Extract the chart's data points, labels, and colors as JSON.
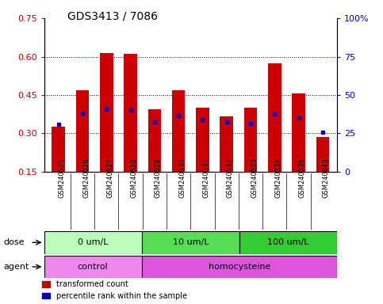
{
  "title": "GDS3413 / 7086",
  "samples": [
    "GSM240525",
    "GSM240526",
    "GSM240527",
    "GSM240528",
    "GSM240529",
    "GSM240530",
    "GSM240531",
    "GSM240532",
    "GSM240533",
    "GSM240534",
    "GSM240535",
    "GSM240848"
  ],
  "red_values": [
    0.325,
    0.47,
    0.615,
    0.61,
    0.395,
    0.47,
    0.4,
    0.365,
    0.4,
    0.575,
    0.455,
    0.285
  ],
  "blue_values": [
    0.335,
    0.38,
    0.395,
    0.39,
    0.345,
    0.37,
    0.355,
    0.345,
    0.34,
    0.375,
    0.36,
    0.305
  ],
  "ylim_left": [
    0.15,
    0.75
  ],
  "ylim_right": [
    0,
    100
  ],
  "yticks_left": [
    0.15,
    0.3,
    0.45,
    0.6,
    0.75
  ],
  "yticks_right": [
    0,
    25,
    50,
    75,
    100
  ],
  "ytick_labels_right": [
    "0",
    "25",
    "50",
    "75",
    "100%"
  ],
  "dose_groups": [
    {
      "label": "0 um/L",
      "start": 0,
      "end": 4,
      "color": "#bbffbb"
    },
    {
      "label": "10 um/L",
      "start": 4,
      "end": 8,
      "color": "#55dd55"
    },
    {
      "label": "100 um/L",
      "start": 8,
      "end": 12,
      "color": "#33cc33"
    }
  ],
  "agent_groups": [
    {
      "label": "control",
      "start": 0,
      "end": 4,
      "color": "#ee88ee"
    },
    {
      "label": "homocysteine",
      "start": 4,
      "end": 12,
      "color": "#dd55dd"
    }
  ],
  "bar_color_red": "#cc0000",
  "bar_color_blue": "#0000cc",
  "bar_width": 0.55,
  "background_color": "#ffffff",
  "plot_bg": "#ffffff",
  "tick_color_left": "#cc0000",
  "tick_color_right": "#0000cc",
  "legend_red": "transformed count",
  "legend_blue": "percentile rank within the sample",
  "dose_label": "dose",
  "agent_label": "agent",
  "sample_bg": "#cccccc",
  "grid_yticks": [
    0.3,
    0.45,
    0.6
  ]
}
